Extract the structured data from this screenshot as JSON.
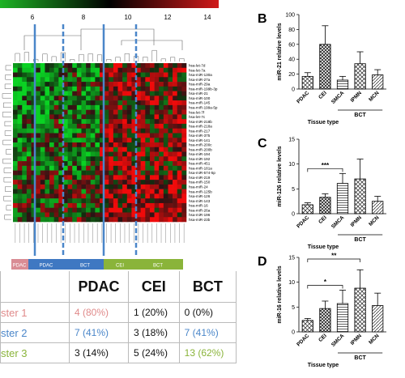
{
  "colorbar": {
    "ticks": [
      "6",
      "8",
      "10",
      "12",
      "14"
    ],
    "colors": [
      "#1db324",
      "#000000",
      "#d11a1a"
    ]
  },
  "heatmap": {
    "row_labels": [
      "hsa-let-7d",
      "hsa-let-7a",
      "hsa-miR-130a",
      "hsa-miR-27a",
      "hsa-miR-29a",
      "hsa-miR-199b-3p",
      "hsa-miR-21",
      "hsa-miR-100",
      "hsa-miR-145",
      "hsa-miR-199a-5p",
      "hsa-let-7f",
      "hsa-let-7c",
      "hsa-miR-218b",
      "hsa-miR-218a",
      "hsa-miR-217",
      "hsa-miR-375",
      "hsa-miR-141",
      "hsa-miR-200c",
      "hsa-miR-200b",
      "hsa-miR-194",
      "hsa-miR-192",
      "hsa-miR-451",
      "hsa-miR-181a",
      "hsa-miR-574-5p",
      "hsa-miR-219",
      "hsa-miR-150",
      "hsa-miR-24",
      "hsa-miR-125b",
      "hsa-miR-126",
      "hsa-miR-143",
      "hsa-miR-16",
      "hsa-miR-26a",
      "hsa-miR-196",
      "hsa-miR-23b"
    ],
    "column_count": 38,
    "groups": [
      {
        "label": "PDAC",
        "color": "#d98c94"
      },
      {
        "label": "PDAC",
        "color": "#3f78c2"
      },
      {
        "label": "BCT",
        "color": "#3f78c2"
      },
      {
        "label": "CEI",
        "color": "#8ab43a"
      },
      {
        "label": "BCT",
        "color": "#8ab43a"
      }
    ]
  },
  "table": {
    "headers": [
      "",
      "PDAC",
      "CEI",
      "BCT"
    ],
    "rows": [
      {
        "label": "ster 1",
        "color": "#e08a8a",
        "cells": [
          {
            "text": "4 (80%)",
            "color": "#e08a8a"
          },
          {
            "text": "1 (20%)",
            "color": "#111111"
          },
          {
            "text": "0 (0%)",
            "color": "#111111"
          }
        ]
      },
      {
        "label": "ster 2",
        "color": "#4a86c9",
        "cells": [
          {
            "text": "7 (41%)",
            "color": "#4a86c9"
          },
          {
            "text": "3 (18%)",
            "color": "#111111"
          },
          {
            "text": "7 (41%)",
            "color": "#4a86c9"
          }
        ]
      },
      {
        "label": "ster 3",
        "color": "#8ab43a",
        "cells": [
          {
            "text": "3 (14%)",
            "color": "#111111"
          },
          {
            "text": "5 (24%)",
            "color": "#111111"
          },
          {
            "text": "13 (62%)",
            "color": "#8ab43a"
          }
        ]
      }
    ]
  },
  "chart_data": [
    {
      "panel": "B",
      "type": "bar",
      "categories": [
        "PDAC",
        "CEI",
        "SMCA",
        "IPMN",
        "MCN"
      ],
      "values": [
        17,
        60,
        12,
        34,
        19
      ],
      "errors": [
        5,
        25,
        5,
        16,
        7
      ],
      "patterns": [
        "cross",
        "grid",
        "hlines",
        "cross",
        "diag"
      ],
      "ylabel": "miR-21 relative levels",
      "xlabel": "Tissue type",
      "group_label": "BCT",
      "yticks": [
        "0",
        "20",
        "40",
        "60",
        "80",
        "100"
      ],
      "ylim": [
        0,
        100
      ],
      "significance": []
    },
    {
      "panel": "C",
      "type": "bar",
      "categories": [
        "PDAC",
        "CEI",
        "SMCA",
        "IPMN",
        "MCN"
      ],
      "values": [
        1.8,
        3.3,
        6.1,
        7.0,
        2.5
      ],
      "errors": [
        0.4,
        0.7,
        2.0,
        4.0,
        1.0
      ],
      "patterns": [
        "cross",
        "grid",
        "hlines",
        "cross",
        "diag"
      ],
      "ylabel": "miR-126 relative levels",
      "xlabel": "Tissue type",
      "group_label": "BCT",
      "yticks": [
        "0",
        "5",
        "10",
        "15"
      ],
      "ylim": [
        0,
        15
      ],
      "significance": [
        {
          "from": 0,
          "to": 2,
          "label": "***"
        }
      ]
    },
    {
      "panel": "D",
      "type": "bar",
      "categories": [
        "PDAC",
        "CEI",
        "SMCA",
        "IPMN",
        "MCN"
      ],
      "values": [
        2.3,
        4.7,
        5.7,
        8.8,
        5.3
      ],
      "errors": [
        0.4,
        1.5,
        2.7,
        3.7,
        2.5
      ],
      "patterns": [
        "cross",
        "grid",
        "hlines",
        "cross",
        "diag"
      ],
      "ylabel": "miR-16 relative levels",
      "xlabel": "Tissue type",
      "group_label": "BCT",
      "yticks": [
        "0",
        "5",
        "10",
        "15"
      ],
      "ylim": [
        0,
        15
      ],
      "significance": [
        {
          "from": 0,
          "to": 2,
          "label": "*"
        },
        {
          "from": 0,
          "to": 3,
          "label": "**"
        }
      ]
    }
  ]
}
